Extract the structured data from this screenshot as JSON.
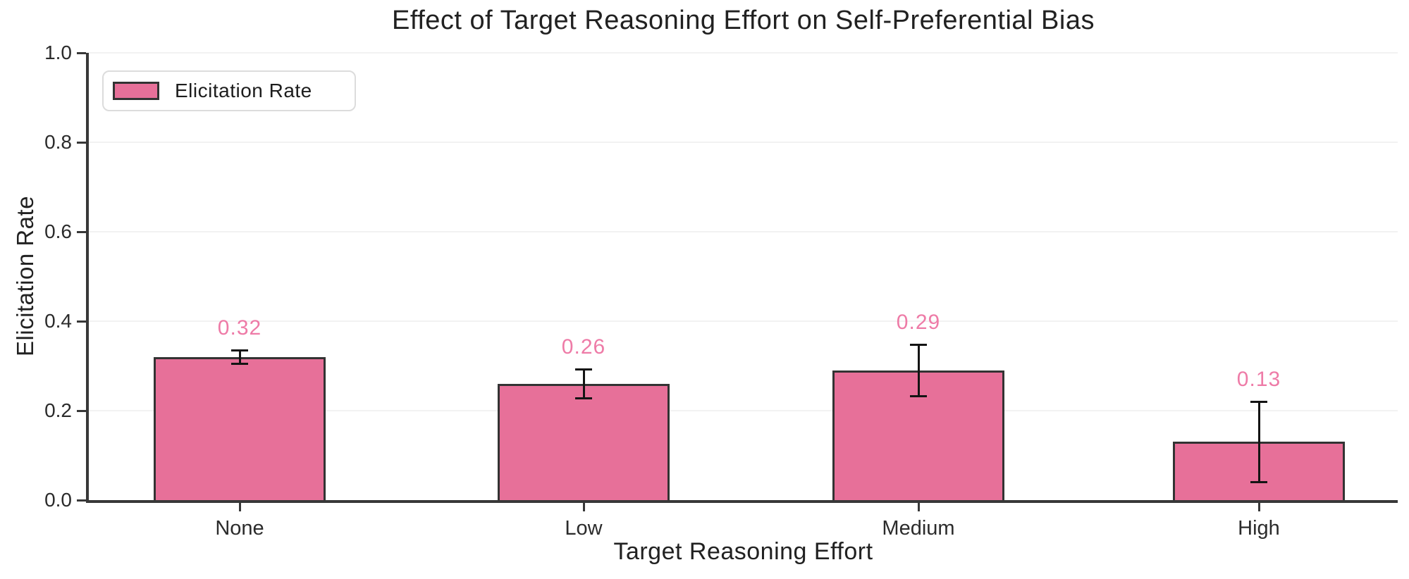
{
  "title": "Effect of Target Reasoning Effort on Self-Preferential Bias",
  "legend": {
    "label": "Elicitation Rate"
  },
  "chart_data": {
    "type": "bar",
    "title": "Effect of Target Reasoning Effort on Self-Preferential Bias",
    "categories": [
      "None",
      "Low",
      "Medium",
      "High"
    ],
    "series": [
      {
        "name": "Elicitation Rate",
        "values": [
          0.32,
          0.26,
          0.29,
          0.13
        ],
        "errors": [
          0.016,
          0.033,
          0.058,
          0.091
        ]
      }
    ],
    "value_labels": [
      "0.32",
      "0.26",
      "0.29",
      "0.13"
    ],
    "xlabel": "Target Reasoning Effort",
    "ylabel": "Elicitation Rate",
    "ylim": [
      0.0,
      1.0
    ],
    "yticks": [
      0.0,
      0.2,
      0.4,
      0.6,
      0.8,
      1.0
    ],
    "ytick_labels": [
      "0.0",
      "0.2",
      "0.4",
      "0.6",
      "0.8",
      "1.0"
    ],
    "grid": true,
    "legend_position": "upper left",
    "colors": {
      "bar_fill": "#e77099",
      "bar_edge": "#333333",
      "error_bar": "#141414",
      "value_label": "#ee7ba7",
      "gridline": "#f2f2f2",
      "spine": "#383838",
      "text": "#212121"
    }
  }
}
